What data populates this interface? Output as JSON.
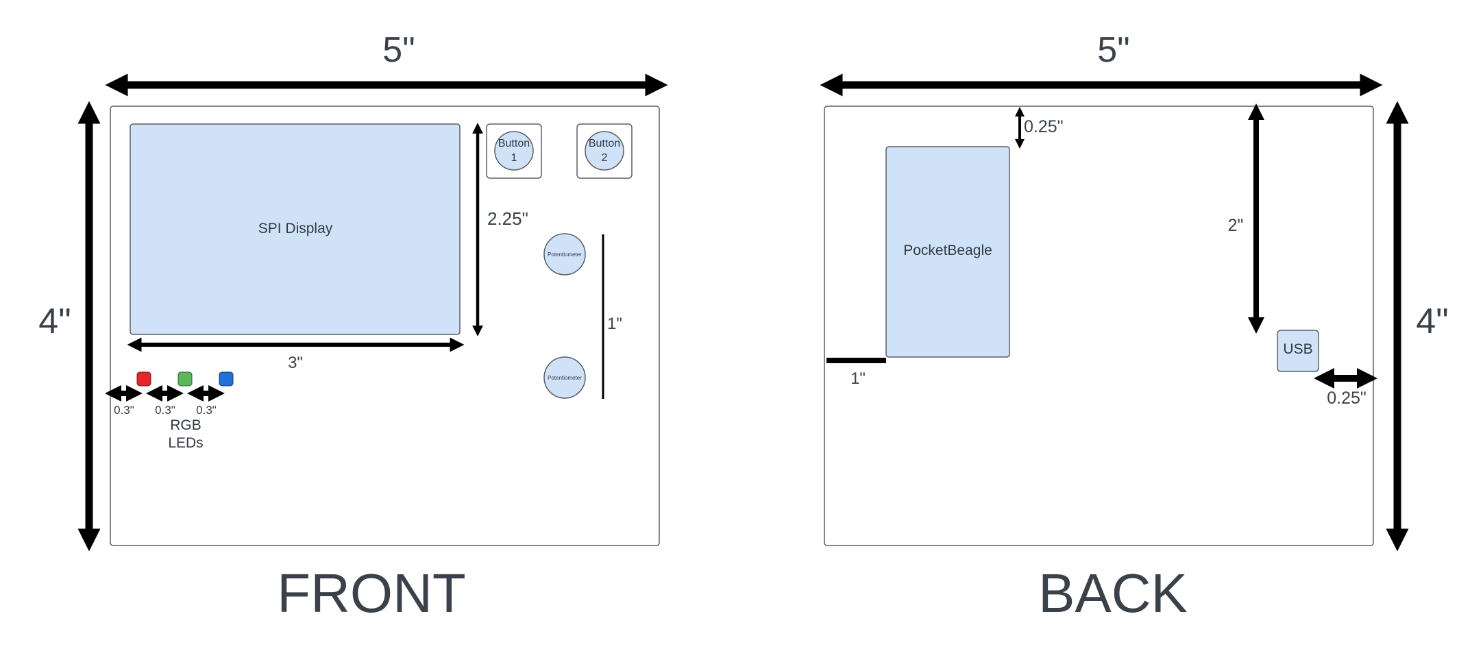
{
  "colors": {
    "text": "#3a414a",
    "component_fill": "#cfe2f8",
    "outline": "#5a5f66",
    "dimension_line": "#000000",
    "led_red": "#e8262a",
    "led_green": "#5cb85c",
    "led_blue": "#1f73d6"
  },
  "front": {
    "title": "FRONT",
    "width_label": "5\"",
    "height_label": "4\"",
    "display_label": "SPI Display",
    "display_width_label": "3\"",
    "display_height_label": "2.25\"",
    "button1_label_line1": "Button",
    "button1_label_line2": "1",
    "button2_label_line1": "Button",
    "button2_label_line2": "2",
    "pot1_label": "Potentiometer",
    "pot2_label": "Potentiometer",
    "pot_spacing_label": "1\"",
    "led_spacing_labels": [
      "0.3\"",
      "0.3\"",
      "0.3\""
    ],
    "led_caption_line1": "RGB",
    "led_caption_line2": "LEDs"
  },
  "back": {
    "title": "BACK",
    "width_label": "5\"",
    "height_label": "4\"",
    "board_label": "PocketBeagle",
    "board_top_offset_label": "0.25\"",
    "board_left_offset_label": "1\"",
    "usb_label": "USB",
    "usb_top_offset_label": "2\"",
    "usb_right_offset_label": "0.25\""
  }
}
